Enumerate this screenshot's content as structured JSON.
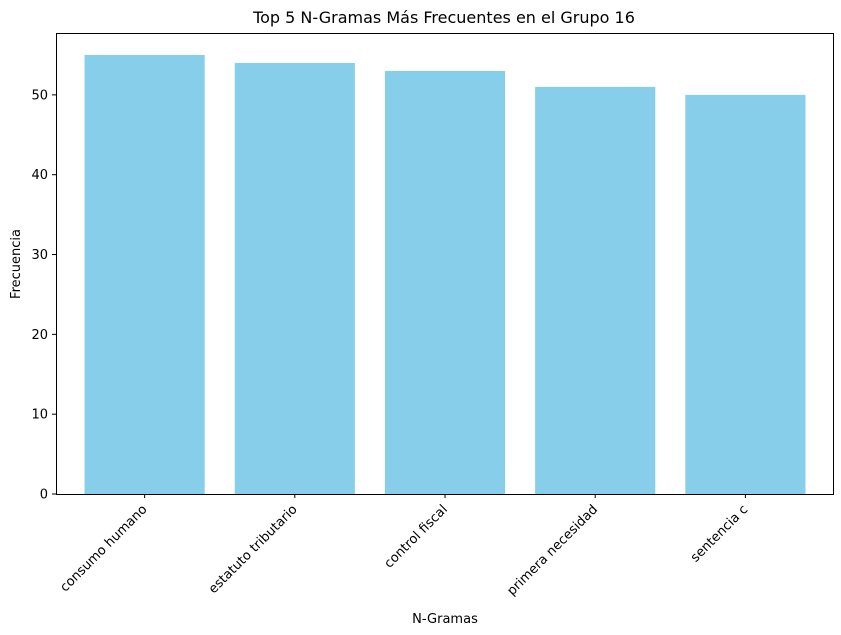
{
  "chart_data": {
    "type": "bar",
    "title": "Top 5 N-Gramas Más Frecuentes en el Grupo 16",
    "xlabel": "N-Gramas",
    "ylabel": "Frecuencia",
    "categories": [
      "consumo humano",
      "estatuto tributario",
      "control fiscal",
      "primera necesidad",
      "sentencia c"
    ],
    "values": [
      55,
      54,
      53,
      51,
      50
    ],
    "ylim": [
      0,
      57.75
    ],
    "yticks": [
      0,
      10,
      20,
      30,
      40,
      50
    ],
    "bar_color": "#87CEEB",
    "grid": false,
    "legend": "none"
  }
}
